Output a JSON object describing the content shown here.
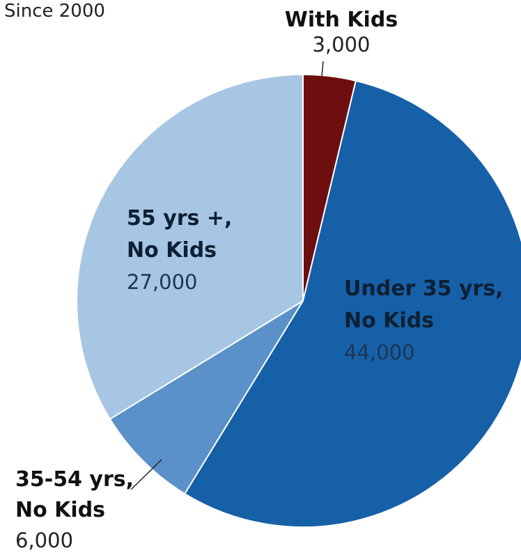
{
  "chart_data": {
    "type": "pie",
    "subtitle": "Since 2000",
    "slices": [
      {
        "name_lines": [
          "With Kids"
        ],
        "value": 3000,
        "value_label": "3,000",
        "color": "#6e0f0f"
      },
      {
        "name_lines": [
          "Under 35 yrs,",
          "No Kids"
        ],
        "value": 44000,
        "value_label": "44,000",
        "color": "#1660a8"
      },
      {
        "name_lines": [
          "35-54 yrs,",
          "No Kids"
        ],
        "value": 6000,
        "value_label": "6,000",
        "color": "#5a91c8"
      },
      {
        "name_lines": [
          "55 yrs +,",
          "No Kids"
        ],
        "value": 27000,
        "value_label": "27,000",
        "color": "#a7c6e3"
      }
    ]
  }
}
